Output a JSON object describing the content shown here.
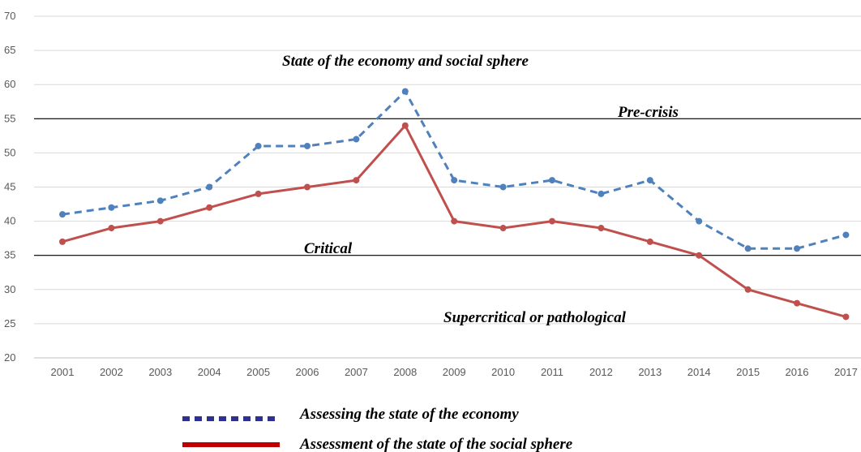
{
  "chart_data": {
    "type": "line",
    "title": "",
    "xlabel": "",
    "ylabel": "",
    "ylim": [
      20,
      70
    ],
    "yticks": [
      20,
      25,
      30,
      35,
      40,
      45,
      50,
      55,
      60,
      65,
      70
    ],
    "grid": "horizontal",
    "legend_position": "bottom",
    "categories": [
      "2001",
      "2002",
      "2003",
      "2004",
      "2005",
      "2006",
      "2007",
      "2008",
      "2009",
      "2010",
      "2011",
      "2012",
      "2013",
      "2014",
      "2015",
      "2016",
      "2017"
    ],
    "series": [
      {
        "name": "Assessing the state of the economy",
        "style": "dashed",
        "color": "#4f81bd",
        "values": [
          41,
          42,
          43,
          45,
          51,
          51,
          52,
          59,
          46,
          45,
          46,
          44,
          46,
          40,
          36,
          36,
          38
        ]
      },
      {
        "name": "Assessment of the state of the social sphere",
        "style": "solid",
        "color": "#c0504d",
        "values": [
          37,
          39,
          40,
          42,
          44,
          45,
          46,
          54,
          40,
          39,
          40,
          39,
          37,
          35,
          30,
          28,
          26
        ]
      }
    ],
    "reference_lines": [
      {
        "value": 55,
        "color": "#000000"
      },
      {
        "value": 35,
        "color": "#000000"
      }
    ],
    "annotations": [
      {
        "text": "State of the economy and social sphere"
      },
      {
        "text": "Pre-crisis"
      },
      {
        "text": "Critical"
      },
      {
        "text": "Supercritical or pathological"
      }
    ],
    "legend_colors": {
      "economy": "#2e3192",
      "social": "#c00000"
    }
  }
}
